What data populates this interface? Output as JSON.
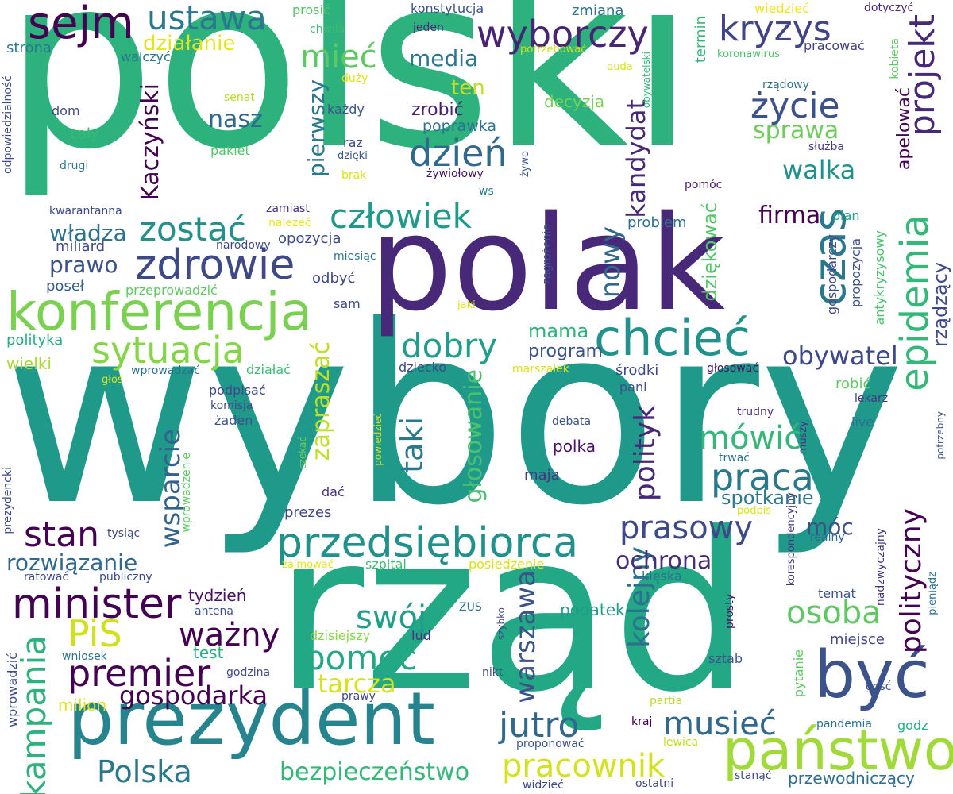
{
  "words": [
    {
      "text": "polski",
      "color": "#2db27d"
    },
    {
      "text": "wybory",
      "color": "#1f9a8a"
    },
    {
      "text": "rząd",
      "color": "#22a884"
    },
    {
      "text": "polak",
      "color": "#482878"
    },
    {
      "text": "prezydent",
      "color": "#25848e"
    },
    {
      "text": "konferencja",
      "color": "#7ad151"
    },
    {
      "text": "chcieć",
      "color": "#21918c"
    },
    {
      "text": "być",
      "color": "#3b528b"
    },
    {
      "text": "państwo",
      "color": "#a0da39"
    },
    {
      "text": "przedsiębiorca",
      "color": "#21918c"
    },
    {
      "text": "czas",
      "color": "#2a788e"
    },
    {
      "text": "epidemia",
      "color": "#35b779"
    },
    {
      "text": "zdrowie",
      "color": "#3e4989"
    },
    {
      "text": "sytuacja",
      "color": "#86d549"
    },
    {
      "text": "minister",
      "color": "#440154"
    },
    {
      "text": "premier",
      "color": "#440154"
    },
    {
      "text": "sejm",
      "color": "#440154"
    },
    {
      "text": "ustawa",
      "color": "#2a788e"
    },
    {
      "text": "wyborczy",
      "color": "#482475"
    },
    {
      "text": "kryzys",
      "color": "#414487"
    },
    {
      "text": "projekt",
      "color": "#482878"
    },
    {
      "text": "życie",
      "color": "#3b528b"
    },
    {
      "text": "praca",
      "color": "#2a788e"
    },
    {
      "text": "prasowy",
      "color": "#3e4989"
    },
    {
      "text": "mówić",
      "color": "#35b779"
    },
    {
      "text": "PiS",
      "color": "#d0e11c"
    },
    {
      "text": "osoba",
      "color": "#5ec962"
    },
    {
      "text": "polityczny",
      "color": "#440154"
    },
    {
      "text": "pomoc",
      "color": "#22a884"
    },
    {
      "text": "swój",
      "color": "#1f9e89"
    },
    {
      "text": "ważny",
      "color": "#440154"
    },
    {
      "text": "stan",
      "color": "#440154"
    },
    {
      "text": "Polska",
      "color": "#2a788e"
    },
    {
      "text": "kampania",
      "color": "#2db27d"
    },
    {
      "text": "pracownik",
      "color": "#d2e21b"
    },
    {
      "text": "jutro",
      "color": "#31688e"
    },
    {
      "text": "musieć",
      "color": "#31688e"
    },
    {
      "text": "człowiek",
      "color": "#1f9a8a"
    },
    {
      "text": "zostać",
      "color": "#21918c"
    },
    {
      "text": "dzień",
      "color": "#31688e"
    },
    {
      "text": "dobry",
      "color": "#1f9e89"
    },
    {
      "text": "mieć",
      "color": "#5ec962"
    },
    {
      "text": "media",
      "color": "#2a788e"
    },
    {
      "text": "nasz",
      "color": "#31688e"
    },
    {
      "text": "Kaczyński",
      "color": "#440154"
    },
    {
      "text": "gospodarka",
      "color": "#440154"
    },
    {
      "text": "bezpieczeństwo",
      "color": "#35b779"
    },
    {
      "text": "tarcza",
      "color": "#d8e219"
    },
    {
      "text": "głosowanie",
      "color": "#4ac16d"
    },
    {
      "text": "warszawa",
      "color": "#3b528b"
    },
    {
      "text": "kolejny",
      "color": "#2c728e"
    },
    {
      "text": "polityk",
      "color": "#482878"
    },
    {
      "text": "wsparcie",
      "color": "#33638d"
    },
    {
      "text": "zapraszać",
      "color": "#bddf26"
    },
    {
      "text": "taki",
      "color": "#2a788e"
    },
    {
      "text": "obywatel",
      "color": "#3e4989"
    },
    {
      "text": "walka",
      "color": "#21918c"
    },
    {
      "text": "sprawa",
      "color": "#6ccd5a"
    },
    {
      "text": "firma",
      "color": "#440154"
    },
    {
      "text": "kandydat",
      "color": "#482878"
    },
    {
      "text": "nowy",
      "color": "#31688e"
    },
    {
      "text": "ochrona",
      "color": "#472d7b"
    },
    {
      "text": "spotkanie",
      "color": "#2a788e"
    },
    {
      "text": "móc",
      "color": "#3b528b"
    },
    {
      "text": "rozwiązanie",
      "color": "#31688e"
    },
    {
      "text": "władza",
      "color": "#2c728e"
    },
    {
      "text": "prawo",
      "color": "#3b528b"
    },
    {
      "text": "działanie",
      "color": "#e5e419"
    },
    {
      "text": "pierwszy",
      "color": "#2a788e"
    },
    {
      "text": "ten",
      "color": "#c2df23"
    },
    {
      "text": "zrobić",
      "color": "#481f70"
    },
    {
      "text": "decyzja",
      "color": "#73d056"
    },
    {
      "text": "poprawka",
      "color": "#2c728e"
    },
    {
      "text": "program",
      "color": "#3b528b"
    },
    {
      "text": "mama",
      "color": "#2db27d"
    },
    {
      "text": "dziękować",
      "color": "#54c568"
    },
    {
      "text": "rządzący",
      "color": "#3e4989"
    },
    {
      "text": "apelować",
      "color": "#450559"
    },
    {
      "text": "przewodniczący",
      "color": "#2e6e8e"
    },
    {
      "text": "podatek",
      "color": "#1f9e89"
    },
    {
      "text": "tydzień",
      "color": "#471365"
    },
    {
      "text": "milion",
      "color": "#dde318"
    },
    {
      "text": "polka",
      "color": "#471164"
    },
    {
      "text": "maja",
      "color": "#453581"
    },
    {
      "text": "prezes",
      "color": "#3e4989"
    },
    {
      "text": "dać",
      "color": "#46327e"
    },
    {
      "text": "test",
      "color": "#26ad81"
    },
    {
      "text": "konstytucja",
      "color": "#3b528b"
    },
    {
      "text": "zmiana",
      "color": "#2c728e"
    },
    {
      "text": "wiedzieć",
      "color": "#f1e51d"
    },
    {
      "text": "dotyczyć",
      "color": "#482878"
    },
    {
      "text": "prosić",
      "color": "#52c569"
    },
    {
      "text": "chwila",
      "color": "#3fbc73"
    },
    {
      "text": "jeden",
      "color": "#472c7a"
    },
    {
      "text": "strona",
      "color": "#2a788e"
    },
    {
      "text": "walczyć",
      "color": "#2c728e"
    },
    {
      "text": "potrzebować",
      "color": "#cae11f"
    },
    {
      "text": "duda",
      "color": "#d5e21a"
    },
    {
      "text": "pracować",
      "color": "#424086"
    },
    {
      "text": "koronawirus",
      "color": "#4ac16d"
    },
    {
      "text": "termin",
      "color": "#35b779"
    },
    {
      "text": "kobieta",
      "color": "#5ec962"
    },
    {
      "text": "obywatelski",
      "color": "#37b878"
    },
    {
      "text": "rządowy",
      "color": "#2c728e"
    },
    {
      "text": "służba",
      "color": "#453882"
    },
    {
      "text": "duży",
      "color": "#dde318"
    },
    {
      "text": "senat",
      "color": "#b8de29"
    },
    {
      "text": "każdy",
      "color": "#39568c"
    },
    {
      "text": "dom",
      "color": "#3e4a89"
    },
    {
      "text": "cały",
      "color": "#38b977"
    },
    {
      "text": "pakiet",
      "color": "#54c568"
    },
    {
      "text": "drugi",
      "color": "#2a778e"
    },
    {
      "text": "raz",
      "color": "#3e4989"
    },
    {
      "text": "dzięki",
      "color": "#3b528b"
    },
    {
      "text": "żywo",
      "color": "#3b528b"
    },
    {
      "text": "żywiołowy",
      "color": "#471063"
    },
    {
      "text": "brak",
      "color": "#dae319"
    },
    {
      "text": "ws",
      "color": "#27808e"
    },
    {
      "text": "pomóc",
      "color": "#481a6c"
    },
    {
      "text": "odpowiedzialność",
      "color": "#3e4989"
    },
    {
      "text": "kwarantanna",
      "color": "#3e4989"
    },
    {
      "text": "zamiast",
      "color": "#46327e"
    },
    {
      "text": "należeć",
      "color": "#f1e51d"
    },
    {
      "text": "miliard",
      "color": "#3e4989"
    },
    {
      "text": "narodowy",
      "color": "#3e4989"
    },
    {
      "text": "opozycja",
      "color": "#3e4989"
    },
    {
      "text": "problem",
      "color": "#2c728e"
    },
    {
      "text": "plan",
      "color": "#1f9e89"
    },
    {
      "text": "zagrożenie",
      "color": "#3b528b"
    },
    {
      "text": "gospodarczy",
      "color": "#3e4989"
    },
    {
      "text": "propozycja",
      "color": "#3b528b"
    },
    {
      "text": "antykryzysowy",
      "color": "#4ac16d"
    },
    {
      "text": "miesiąc",
      "color": "#2c728e"
    },
    {
      "text": "poseł",
      "color": "#365c8d"
    },
    {
      "text": "przeprowadzić",
      "color": "#5ec962"
    },
    {
      "text": "odbyć",
      "color": "#3e4989"
    },
    {
      "text": "sam",
      "color": "#3e4989"
    },
    {
      "text": "polityka",
      "color": "#26ad81"
    },
    {
      "text": "wielki",
      "color": "#a8db34"
    },
    {
      "text": "jaki",
      "color": "#dde318"
    },
    {
      "text": "wprowadzać",
      "color": "#2c728e"
    },
    {
      "text": "działać",
      "color": "#3fbc73"
    },
    {
      "text": "dziecko",
      "color": "#3e4989"
    },
    {
      "text": "marszałek",
      "color": "#dae319"
    },
    {
      "text": "środki",
      "color": "#3e4989"
    },
    {
      "text": "głosować",
      "color": "#471365"
    },
    {
      "text": "robić",
      "color": "#5ec962"
    },
    {
      "text": "pani",
      "color": "#3b528b"
    },
    {
      "text": "lekarz",
      "color": "#453781"
    },
    {
      "text": "głos",
      "color": "#d5e21a"
    },
    {
      "text": "podpisać",
      "color": "#3e4989"
    },
    {
      "text": "komisja",
      "color": "#3e4989"
    },
    {
      "text": "żaden",
      "color": "#3b528b"
    },
    {
      "text": "live",
      "color": "#2c728e"
    },
    {
      "text": "debata",
      "color": "#3b528b"
    },
    {
      "text": "trudny",
      "color": "#482878"
    },
    {
      "text": "powiedzieć",
      "color": "#dde318"
    },
    {
      "text": "czekać",
      "color": "#73d056"
    },
    {
      "text": "trwać",
      "color": "#2c728e"
    },
    {
      "text": "muszy",
      "color": "#472d7b"
    },
    {
      "text": "potrzebny",
      "color": "#3b528b"
    },
    {
      "text": "wprowadzenie",
      "color": "#5ec962"
    },
    {
      "text": "prezydencki",
      "color": "#3e4989"
    },
    {
      "text": "tysiąc",
      "color": "#3e4989"
    },
    {
      "text": "podpis",
      "color": "#dae319"
    },
    {
      "text": "realny",
      "color": "#31688e"
    },
    {
      "text": "korespondencyjny",
      "color": "#453781"
    },
    {
      "text": "nadzwyczajny",
      "color": "#46337e"
    },
    {
      "text": "publiczny",
      "color": "#3e4989"
    },
    {
      "text": "ratować",
      "color": "#3e4989"
    },
    {
      "text": "zajmować",
      "color": "#e5e419"
    },
    {
      "text": "szpital",
      "color": "#3fbc73"
    },
    {
      "text": "posiedzenie",
      "color": "#d8e219"
    },
    {
      "text": "klęska",
      "color": "#2c728e"
    },
    {
      "text": "temat",
      "color": "#3b528b"
    },
    {
      "text": "pieniądz",
      "color": "#2c728e"
    },
    {
      "text": "antena",
      "color": "#3b528b"
    },
    {
      "text": "ZUS",
      "color": "#2c728e"
    },
    {
      "text": "szybko",
      "color": "#3e4989"
    },
    {
      "text": "prosty",
      "color": "#471365"
    },
    {
      "text": "miejsce",
      "color": "#3e4989"
    },
    {
      "text": "dzisiejszy",
      "color": "#86d549"
    },
    {
      "text": "lud",
      "color": "#46327e"
    },
    {
      "text": "wprowadzić",
      "color": "#3e4989"
    },
    {
      "text": "wniosek",
      "color": "#2c728e"
    },
    {
      "text": "godzina",
      "color": "#3e4989"
    },
    {
      "text": "nikt",
      "color": "#3e4989"
    },
    {
      "text": "sztab",
      "color": "#3b528b"
    },
    {
      "text": "pytanie",
      "color": "#5ec962"
    },
    {
      "text": "prawy",
      "color": "#3e4989"
    },
    {
      "text": "partia",
      "color": "#b5de2b"
    },
    {
      "text": "gość",
      "color": "#3b528b"
    },
    {
      "text": "godz",
      "color": "#26ad81"
    },
    {
      "text": "kraj",
      "color": "#440154"
    },
    {
      "text": "pandemia",
      "color": "#2c728e"
    },
    {
      "text": "proponować",
      "color": "#3b528b"
    },
    {
      "text": "lewica",
      "color": "#bddf26"
    },
    {
      "text": "widzieć",
      "color": "#3e4989"
    },
    {
      "text": "ostatni",
      "color": "#3e4989"
    },
    {
      "text": "stanąć",
      "color": "#3e4989"
    }
  ]
}
